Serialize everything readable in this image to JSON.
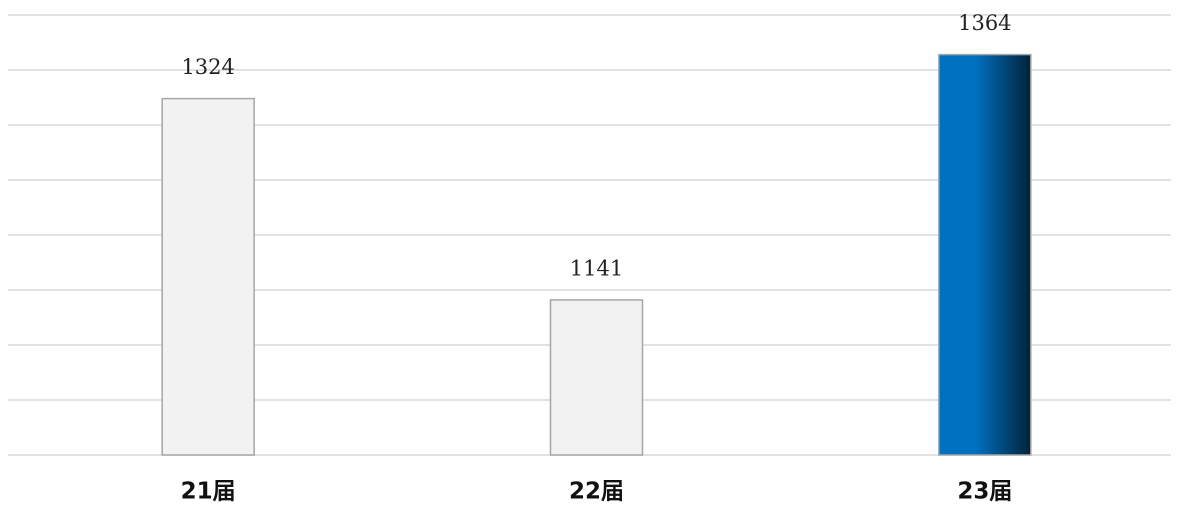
{
  "chart_data": {
    "type": "bar",
    "categories": [
      "21届",
      "22届",
      "23届"
    ],
    "values": [
      1324,
      1141,
      1364
    ],
    "colors": [
      "#f2f2f2",
      "#f2f2f2",
      "#0070c0"
    ],
    "ylim": [
      1000,
      1400
    ],
    "yticks": [
      1000,
      1050,
      1100,
      1150,
      1200,
      1250,
      1300,
      1350,
      1400
    ],
    "grid": true
  }
}
